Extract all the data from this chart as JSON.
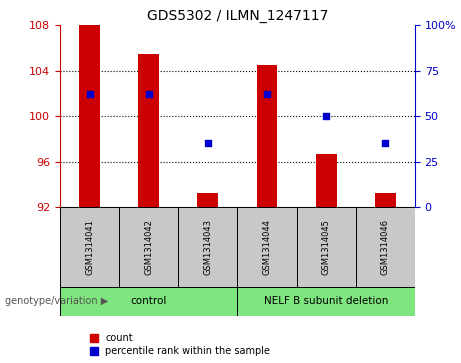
{
  "title": "GDS5302 / ILMN_1247117",
  "samples": [
    "GSM1314041",
    "GSM1314042",
    "GSM1314043",
    "GSM1314044",
    "GSM1314045",
    "GSM1314046"
  ],
  "counts": [
    108,
    105.5,
    93.2,
    104.5,
    96.7,
    93.2
  ],
  "percentile_ranks": [
    62,
    62,
    35,
    62,
    50,
    35
  ],
  "ylim_left": [
    92,
    108
  ],
  "ylim_right": [
    0,
    100
  ],
  "yticks_left": [
    92,
    96,
    100,
    104,
    108
  ],
  "yticks_right": [
    0,
    25,
    50,
    75,
    100
  ],
  "bar_color": "#CC0000",
  "dot_color": "#0000CC",
  "bar_bottom": 92,
  "group_labels": [
    "control",
    "NELF B subunit deletion"
  ],
  "group_ranges": [
    [
      0,
      3
    ],
    [
      3,
      6
    ]
  ],
  "group_color": "#7FE57F",
  "header_label": "genotype/variation",
  "legend_count_label": "count",
  "legend_pct_label": "percentile rank within the sample",
  "dotted_grid_yticks": [
    96,
    100,
    104
  ],
  "bg_color": "#ffffff",
  "plot_bg_color": "#ffffff",
  "tick_label_color_left": "#CC0000",
  "tick_label_color_right": "#0000CC",
  "bar_width": 0.35,
  "sample_cell_color": "#C8C8C8"
}
